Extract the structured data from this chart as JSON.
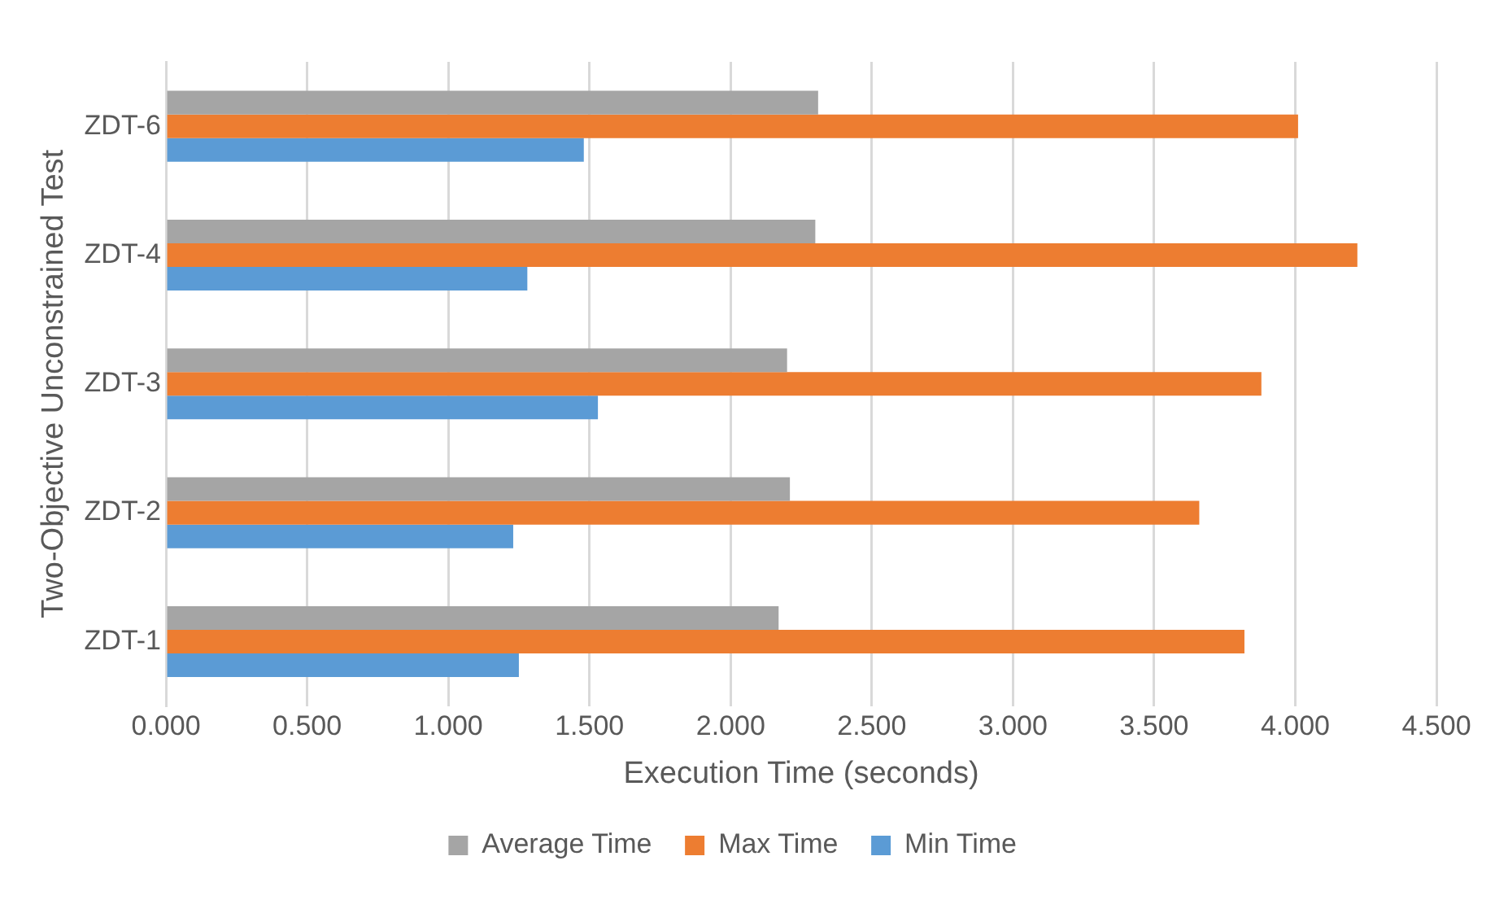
{
  "chart_data": {
    "type": "bar",
    "orientation": "horizontal",
    "xlabel": "Execution Time (seconds)",
    "ylabel": "Two-Objective Unconstrained Test",
    "categories": [
      "ZDT-6",
      "ZDT-4",
      "ZDT-3",
      "ZDT-2",
      "ZDT-1"
    ],
    "series": [
      {
        "name": "Average Time",
        "color": "#a5a5a5",
        "values": [
          2.31,
          2.3,
          2.2,
          2.21,
          2.17
        ]
      },
      {
        "name": "Max Time",
        "color": "#ed7d31",
        "values": [
          4.01,
          4.22,
          3.88,
          3.66,
          3.82
        ]
      },
      {
        "name": "Min Time",
        "color": "#5b9bd5",
        "values": [
          1.48,
          1.28,
          1.53,
          1.23,
          1.25
        ]
      }
    ],
    "xlim": [
      0,
      4.5
    ],
    "xticks": [
      {
        "value": 0,
        "label": "0.000"
      },
      {
        "value": 0.5,
        "label": "0.500"
      },
      {
        "value": 1,
        "label": "1.000"
      },
      {
        "value": 1.5,
        "label": "1.500"
      },
      {
        "value": 2,
        "label": "2.000"
      },
      {
        "value": 2.5,
        "label": "2.500"
      },
      {
        "value": 3,
        "label": "3.000"
      },
      {
        "value": 3.5,
        "label": "3.500"
      },
      {
        "value": 4,
        "label": "4.000"
      },
      {
        "value": 4.5,
        "label": "4.500"
      }
    ],
    "grid": "x",
    "legend": "bottom"
  }
}
